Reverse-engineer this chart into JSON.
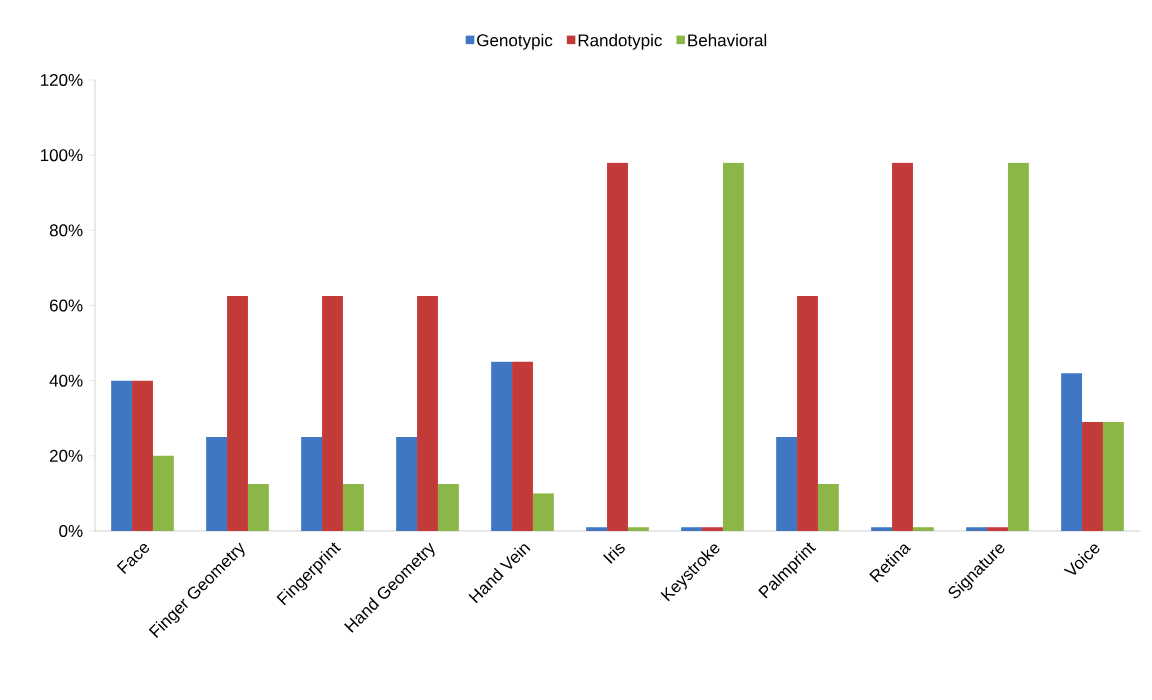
{
  "chart_data": {
    "type": "bar",
    "categories": [
      "Face",
      "Finger Geometry",
      "Fingerprint",
      "Hand Geometry",
      "Hand Vein",
      "Iris",
      "Keystroke",
      "Palmprint",
      "Retina",
      "Signature",
      "Voice"
    ],
    "series": [
      {
        "name": "Genotypic",
        "color": "#3f77c2",
        "values": [
          40,
          25,
          25,
          25,
          45,
          1,
          1,
          25,
          1,
          1,
          42
        ]
      },
      {
        "name": "Randotypic",
        "color": "#c33b38",
        "values": [
          40,
          62.5,
          62.5,
          62.5,
          45,
          98,
          1,
          62.5,
          98,
          1,
          29
        ]
      },
      {
        "name": "Behavioral",
        "color": "#8cb748",
        "values": [
          20,
          12.5,
          12.5,
          12.5,
          10,
          1,
          98,
          12.5,
          1,
          98,
          29
        ]
      }
    ],
    "ylim": [
      0,
      120
    ],
    "yticks": [
      {
        "value": 0,
        "label": "0%"
      },
      {
        "value": 20,
        "label": "20%"
      },
      {
        "value": 40,
        "label": "40%"
      },
      {
        "value": 60,
        "label": "60%"
      },
      {
        "value": 80,
        "label": "80%"
      },
      {
        "value": 100,
        "label": "100%"
      },
      {
        "value": 120,
        "label": "120%"
      }
    ],
    "legend": "top"
  }
}
